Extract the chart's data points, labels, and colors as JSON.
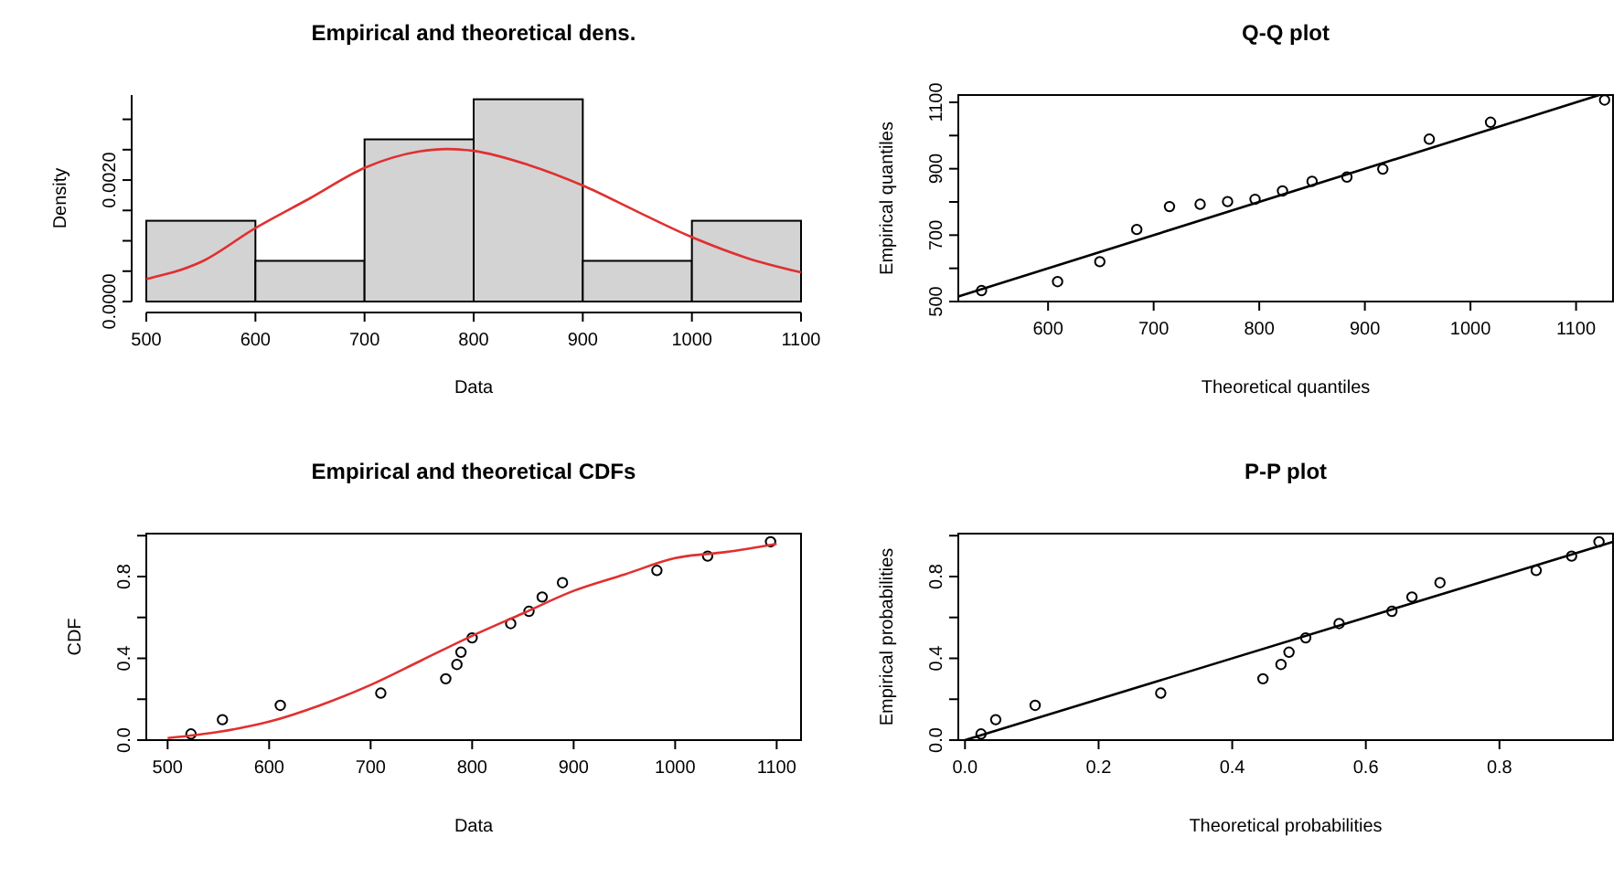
{
  "chart_data": [
    {
      "type": "histogram",
      "title": "Empirical and theoretical dens.",
      "xlabel": "Data",
      "ylabel": "Density",
      "bins": [
        500,
        600,
        700,
        800,
        900,
        1000,
        1100
      ],
      "xlim": [
        500,
        1100
      ],
      "xticks": [
        500,
        600,
        700,
        800,
        900,
        1000,
        1100
      ],
      "ylim": [
        0,
        0.0034
      ],
      "yticks": [
        {
          "value": 0,
          "label": "0.0000"
        },
        {
          "value": 0.0005,
          "label": null
        },
        {
          "value": 0.001,
          "label": null
        },
        {
          "value": 0.0015,
          "label": null
        },
        {
          "value": 0.002,
          "label": "0.0020"
        },
        {
          "value": 0.0025,
          "label": null
        },
        {
          "value": 0.003,
          "label": null
        }
      ],
      "series": [
        {
          "type": "histogram",
          "color": "#d3d3d3",
          "values": [
            0.00133,
            0.00067,
            0.00267,
            0.00333,
            0.00067,
            0.00133
          ]
        },
        {
          "type": "line",
          "color": "#e03030",
          "marker": "none",
          "x": [
            500,
            550,
            600,
            650,
            700,
            750,
            775,
            800,
            850,
            900,
            950,
            1000,
            1050,
            1100
          ],
          "values": [
            0.00037,
            0.00065,
            0.00121,
            0.0017,
            0.0022,
            0.00247,
            0.00251,
            0.00248,
            0.00225,
            0.00191,
            0.00148,
            0.00106,
            0.00072,
            0.00048
          ]
        }
      ]
    },
    {
      "type": "scatter",
      "title": "Q-Q plot",
      "xlabel": "Theoretical quantiles",
      "ylabel": "Empirical quantiles",
      "xlim": [
        515,
        1135
      ],
      "xticks": [
        600,
        700,
        800,
        900,
        1000,
        1100
      ],
      "ylim": [
        500,
        1122
      ],
      "yticks": [
        500,
        {
          "value": 600,
          "label": null
        },
        700,
        {
          "value": 800,
          "label": null
        },
        900,
        {
          "value": 1000,
          "label": null
        },
        1100
      ],
      "series": [
        {
          "type": "scatter",
          "color": "#000000",
          "marker": "circle",
          "x": [
            537,
            609,
            649,
            684,
            715,
            744,
            770,
            796,
            822,
            850,
            883,
            917,
            961,
            1019,
            1127
          ],
          "values": [
            533,
            560,
            620,
            717,
            786,
            793,
            801,
            808,
            833,
            862,
            875,
            899,
            989,
            1040,
            1107
          ]
        },
        {
          "type": "line",
          "color": "#000000",
          "marker": "none",
          "x": [
            515,
            1122
          ],
          "values": [
            515,
            1122
          ]
        }
      ]
    },
    {
      "type": "scatter",
      "title": "Empirical and theoretical CDFs",
      "xlabel": "Data",
      "ylabel": "CDF",
      "xlim": [
        479,
        1124
      ],
      "xticks": [
        500,
        600,
        700,
        800,
        900,
        1000,
        1100
      ],
      "ylim": [
        0,
        1.01
      ],
      "yticks": [
        {
          "value": 0,
          "label": "0.0"
        },
        {
          "value": 0.2,
          "label": null
        },
        {
          "value": 0.4,
          "label": "0.4"
        },
        {
          "value": 0.6,
          "label": null
        },
        {
          "value": 0.8,
          "label": "0.8"
        },
        {
          "value": 1,
          "label": null
        }
      ],
      "series": [
        {
          "type": "scatter",
          "color": "#000000",
          "marker": "circle",
          "x": [
            523,
            554,
            611,
            710,
            774,
            785,
            789,
            800,
            838,
            856,
            869,
            889,
            982,
            1032,
            1094
          ],
          "values": [
            0.03,
            0.1,
            0.17,
            0.23,
            0.3,
            0.37,
            0.43,
            0.5,
            0.57,
            0.63,
            0.7,
            0.77,
            0.83,
            0.9,
            0.97
          ]
        },
        {
          "type": "line",
          "color": "#e03030",
          "marker": "none",
          "x": [
            500,
            550,
            600,
            650,
            700,
            750,
            800,
            850,
            900,
            950,
            1000,
            1050,
            1100
          ],
          "values": [
            0.01,
            0.04,
            0.09,
            0.17,
            0.27,
            0.39,
            0.51,
            0.62,
            0.73,
            0.81,
            0.89,
            0.92,
            0.96
          ]
        }
      ]
    },
    {
      "type": "scatter",
      "title": "P-P plot",
      "xlabel": "Theoretical probabilities",
      "ylabel": "Empirical probabilities",
      "xlim": [
        -0.01,
        0.97
      ],
      "xticks": [
        {
          "value": 0,
          "label": "0.0"
        },
        {
          "value": 0.2,
          "label": "0.2"
        },
        {
          "value": 0.4,
          "label": "0.4"
        },
        {
          "value": 0.6,
          "label": "0.6"
        },
        {
          "value": 0.8,
          "label": "0.8"
        }
      ],
      "ylim": [
        0,
        1.01
      ],
      "yticks": [
        {
          "value": 0,
          "label": "0.0"
        },
        {
          "value": 0.2,
          "label": null
        },
        {
          "value": 0.4,
          "label": "0.4"
        },
        {
          "value": 0.6,
          "label": null
        },
        {
          "value": 0.8,
          "label": "0.8"
        },
        {
          "value": 1,
          "label": null
        }
      ],
      "series": [
        {
          "type": "scatter",
          "color": "#000000",
          "marker": "circle",
          "x": [
            0.024,
            0.046,
            0.105,
            0.293,
            0.446,
            0.473,
            0.485,
            0.51,
            0.56,
            0.639,
            0.669,
            0.711,
            0.855,
            0.908,
            0.949
          ],
          "values": [
            0.03,
            0.1,
            0.17,
            0.23,
            0.3,
            0.37,
            0.43,
            0.5,
            0.57,
            0.63,
            0.7,
            0.77,
            0.83,
            0.9,
            0.97
          ]
        },
        {
          "type": "line",
          "color": "#000000",
          "marker": "none",
          "x": [
            0,
            0.97
          ],
          "values": [
            0,
            0.97
          ]
        }
      ]
    }
  ]
}
